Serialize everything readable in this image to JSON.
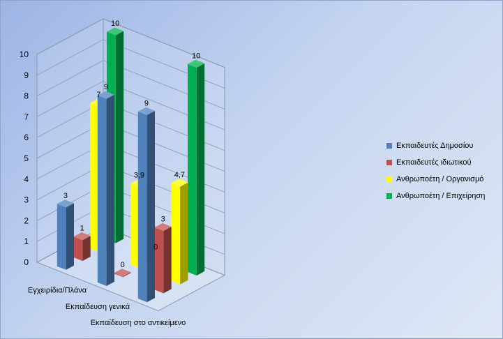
{
  "chart_data": {
    "type": "bar",
    "title": "",
    "xlabel": "",
    "ylabel": "",
    "ylim": [
      0,
      10
    ],
    "yticks": [
      0,
      1,
      2,
      3,
      4,
      5,
      6,
      7,
      8,
      9,
      10
    ],
    "categories": [
      "Εγχειρίδια/Πλάνα",
      "Εκπαίδευση γενικά",
      "Εκπαίδευση στο αντικείμενο"
    ],
    "series": [
      {
        "name": "Εκπαιδευτές Δημοσίου",
        "color": "#4f81bd",
        "values": [
          3,
          9,
          9
        ],
        "labels": [
          "3",
          "9",
          "9"
        ]
      },
      {
        "name": "Εκπαιδευτές ιδιωτικού",
        "color": "#c0504d",
        "values": [
          1,
          0,
          3
        ],
        "labels": [
          "1",
          "0",
          "3"
        ]
      },
      {
        "name": "Ανθρωποέτη / Οργανισμό",
        "color": "#ffff00",
        "values": [
          7,
          3.9,
          4.7
        ],
        "labels": [
          "7",
          "3,9",
          "4,7"
        ]
      },
      {
        "name": "Ανθρωποέτη / Επιχείρηση",
        "color": "#00b050",
        "values": [
          10,
          0,
          10
        ],
        "labels": [
          "10",
          "0",
          "10"
        ]
      }
    ],
    "grid": true,
    "legend_position": "right",
    "style": "3d-column"
  }
}
